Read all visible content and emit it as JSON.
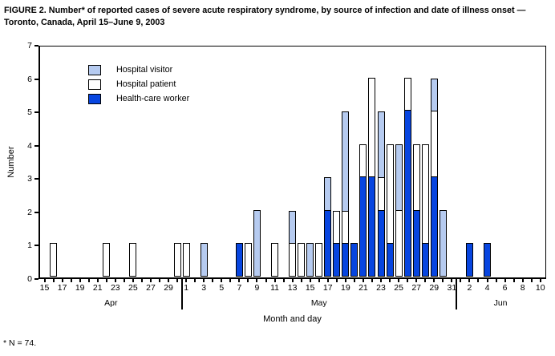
{
  "chart_data": {
    "type": "stacked_bar",
    "title": "FIGURE 2. Number* of reported cases of severe acute respiratory syndrome, by source of infection and date of illness onset — Toronto, Canada, April 15–June 9, 2003",
    "ylabel": "Number",
    "xlabel": "Month and day",
    "footnote": "* N = 74.",
    "ylim": [
      0,
      7
    ],
    "yticks": [
      0,
      1,
      2,
      3,
      4,
      5,
      6,
      7
    ],
    "grid": "off",
    "legend_position": "top-left-inside",
    "legend": [
      {
        "key": "visitor",
        "label": "Hospital visitor",
        "color": "#b6cbf0"
      },
      {
        "key": "patient",
        "label": "Hospital patient",
        "color": "#ffffff"
      },
      {
        "key": "hcw",
        "label": "Health-care worker",
        "color": "#0745e0"
      }
    ],
    "stack_order_bottom_to_top": [
      "hcw",
      "patient",
      "visitor"
    ],
    "x_axis": {
      "months": [
        {
          "name": "Apr",
          "first_day": 15,
          "last_day": 30,
          "labeled_days": [
            15,
            17,
            19,
            21,
            23,
            25,
            27,
            29
          ]
        },
        {
          "name": "May",
          "first_day": 1,
          "last_day": 31,
          "labeled_days": [
            1,
            3,
            5,
            7,
            9,
            11,
            13,
            15,
            17,
            19,
            21,
            23,
            25,
            27,
            29,
            31
          ]
        },
        {
          "name": "Jun",
          "first_day": 1,
          "last_day": 10,
          "labeled_days": [
            2,
            4,
            6,
            8,
            10
          ]
        }
      ]
    },
    "bars": [
      {
        "month": "Apr",
        "day": 16,
        "hcw": 0,
        "patient": 1,
        "visitor": 0
      },
      {
        "month": "Apr",
        "day": 22,
        "hcw": 0,
        "patient": 1,
        "visitor": 0
      },
      {
        "month": "Apr",
        "day": 25,
        "hcw": 0,
        "patient": 1,
        "visitor": 0
      },
      {
        "month": "Apr",
        "day": 30,
        "hcw": 0,
        "patient": 1,
        "visitor": 0
      },
      {
        "month": "May",
        "day": 1,
        "hcw": 0,
        "patient": 1,
        "visitor": 0
      },
      {
        "month": "May",
        "day": 3,
        "hcw": 0,
        "patient": 0,
        "visitor": 1
      },
      {
        "month": "May",
        "day": 7,
        "hcw": 1,
        "patient": 0,
        "visitor": 0
      },
      {
        "month": "May",
        "day": 8,
        "hcw": 0,
        "patient": 1,
        "visitor": 0
      },
      {
        "month": "May",
        "day": 9,
        "hcw": 0,
        "patient": 0,
        "visitor": 2
      },
      {
        "month": "May",
        "day": 11,
        "hcw": 0,
        "patient": 1,
        "visitor": 0
      },
      {
        "month": "May",
        "day": 13,
        "hcw": 0,
        "patient": 1,
        "visitor": 1
      },
      {
        "month": "May",
        "day": 14,
        "hcw": 0,
        "patient": 1,
        "visitor": 0
      },
      {
        "month": "May",
        "day": 15,
        "hcw": 0,
        "patient": 0,
        "visitor": 1
      },
      {
        "month": "May",
        "day": 16,
        "hcw": 0,
        "patient": 1,
        "visitor": 0
      },
      {
        "month": "May",
        "day": 17,
        "hcw": 2,
        "patient": 0,
        "visitor": 1
      },
      {
        "month": "May",
        "day": 18,
        "hcw": 1,
        "patient": 1,
        "visitor": 0
      },
      {
        "month": "May",
        "day": 19,
        "hcw": 1,
        "patient": 1,
        "visitor": 3
      },
      {
        "month": "May",
        "day": 20,
        "hcw": 1,
        "patient": 0,
        "visitor": 0
      },
      {
        "month": "May",
        "day": 21,
        "hcw": 3,
        "patient": 1,
        "visitor": 0
      },
      {
        "month": "May",
        "day": 22,
        "hcw": 3,
        "patient": 3,
        "visitor": 0
      },
      {
        "month": "May",
        "day": 23,
        "hcw": 2,
        "patient": 1,
        "visitor": 2
      },
      {
        "month": "May",
        "day": 24,
        "hcw": 1,
        "patient": 3,
        "visitor": 0
      },
      {
        "month": "May",
        "day": 25,
        "hcw": 0,
        "patient": 2,
        "visitor": 2
      },
      {
        "month": "May",
        "day": 26,
        "hcw": 5,
        "patient": 1,
        "visitor": 0
      },
      {
        "month": "May",
        "day": 27,
        "hcw": 2,
        "patient": 2,
        "visitor": 0
      },
      {
        "month": "May",
        "day": 28,
        "hcw": 1,
        "patient": 3,
        "visitor": 0
      },
      {
        "month": "May",
        "day": 29,
        "hcw": 3,
        "patient": 2,
        "visitor": 1
      },
      {
        "month": "May",
        "day": 30,
        "hcw": 0,
        "patient": 0,
        "visitor": 2
      },
      {
        "month": "Jun",
        "day": 2,
        "hcw": 1,
        "patient": 0,
        "visitor": 0
      },
      {
        "month": "Jun",
        "day": 4,
        "hcw": 1,
        "patient": 0,
        "visitor": 0
      }
    ]
  }
}
